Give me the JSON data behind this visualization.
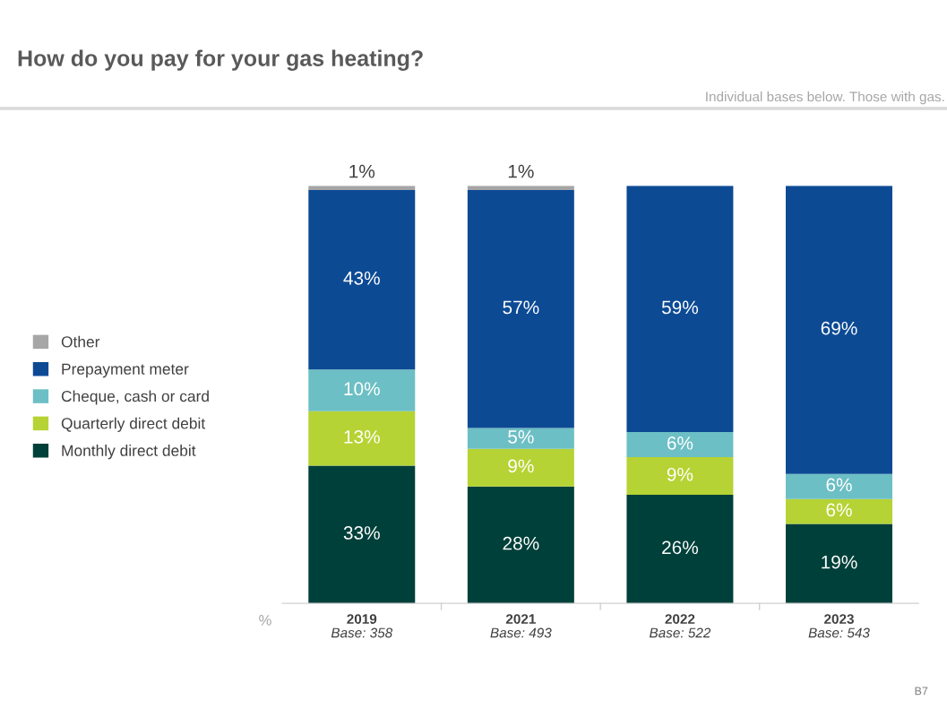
{
  "chart_data": {
    "type": "bar",
    "title": "How do you pay for your gas heating?",
    "subtitle": "Individual bases below. Those with gas.",
    "categories": [
      "2019\nBase: 358",
      "2021\nBase: 493",
      "2022\nBase: 522",
      "2023\nBase: 543"
    ],
    "stacked": true,
    "legend": "left",
    "series": [
      {
        "name": "Monthly direct debit",
        "color": "#00403a",
        "values": [
          33,
          28,
          26,
          19
        ],
        "value_labels": [
          "33%",
          "28%",
          "26%",
          "19%"
        ]
      },
      {
        "name": "Quarterly direct debit",
        "color": "#b5d334",
        "values": [
          13,
          9,
          9,
          6
        ],
        "value_labels": [
          "13%",
          "9%",
          "9%",
          "6%"
        ]
      },
      {
        "name": "Cheque, cash or card",
        "color": "#6cbfc4",
        "values": [
          10,
          5,
          6,
          6
        ],
        "value_labels": [
          "10%",
          "5%",
          "6%",
          "6%"
        ]
      },
      {
        "name": "Prepayment meter",
        "color": "#0d4a94",
        "values": [
          43,
          57,
          59,
          69
        ],
        "value_labels": [
          "43%",
          "57%",
          "59%",
          "69%"
        ]
      },
      {
        "name": "Other",
        "color": "#a6a6a6",
        "values": [
          1,
          1,
          null,
          null
        ],
        "value_labels": [
          "1%",
          "1%",
          null,
          null
        ]
      }
    ],
    "annotations": [
      "%",
      "B7"
    ]
  }
}
